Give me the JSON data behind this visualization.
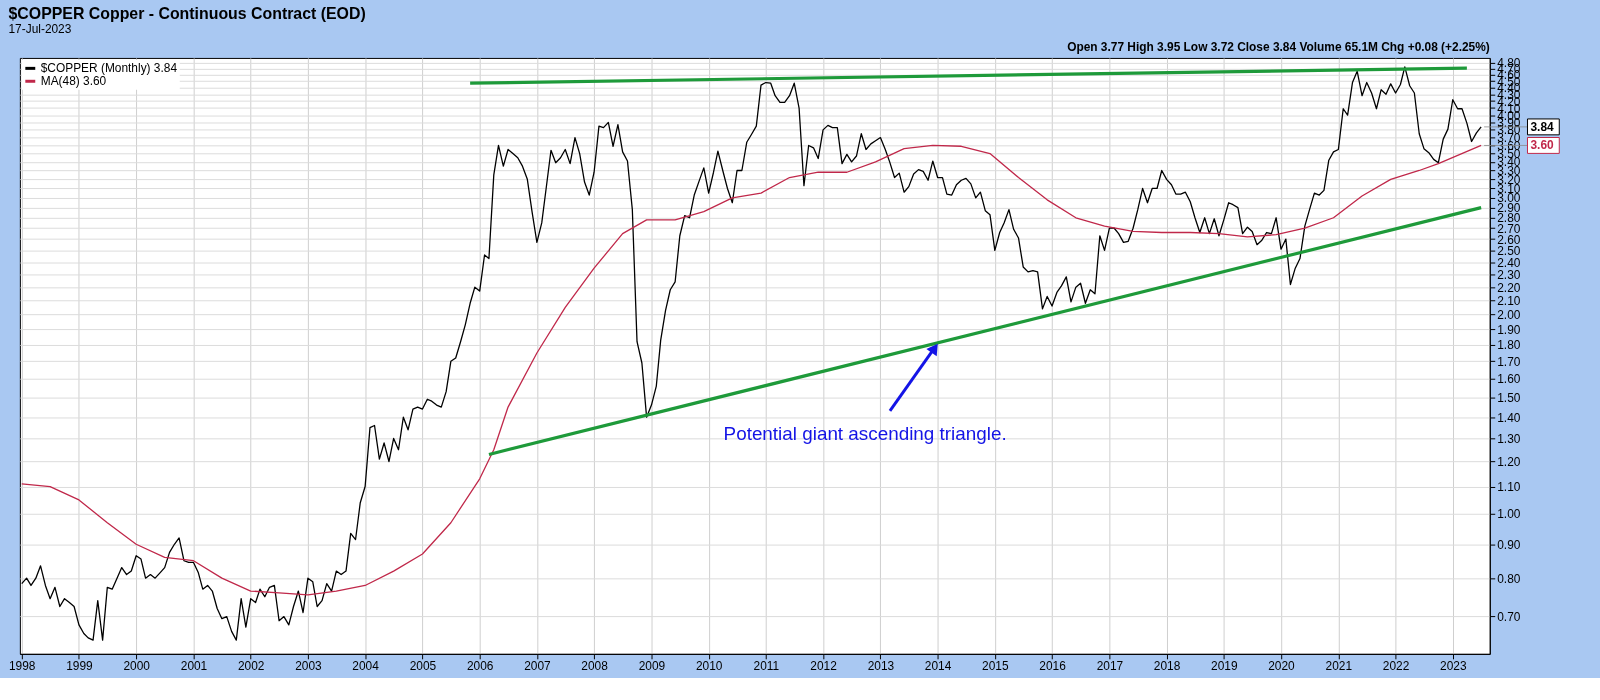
{
  "chart_data": {
    "type": "line",
    "title": "$COPPER Copper - Continuous Contract (EOD)",
    "subtitle": "17-Jul-2023",
    "annotations": [
      "Open 3.77  High 3.95  Low 3.72  Close 3.84  Volume 65.1M  Chg +0.08 (+2.25%)",
      {
        "text": "Potential giant ascending triangle.",
        "x": "2014-01",
        "y": 1.81
      }
    ],
    "log": "y",
    "grid": true,
    "legend": "top left",
    "xlim": [
      "1997-12-20",
      "2023-08-25"
    ],
    "ylim": [
      0.615,
      4.88
    ],
    "xticks": [
      "1998",
      "1999",
      "2000",
      "2001",
      "2002",
      "2003",
      "2004",
      "2005",
      "2006",
      "2007",
      "2008",
      "2009",
      "2010",
      "2011",
      "2012",
      "2013",
      "2014",
      "2015",
      "2016",
      "2017",
      "2018",
      "2019",
      "2020",
      "2021",
      "2022",
      "2023"
    ],
    "yticks": [
      {
        "value": 0.7,
        "label": "0.70"
      },
      {
        "value": 0.8,
        "label": "0.80"
      },
      {
        "value": 0.9,
        "label": "0.90"
      },
      {
        "value": 1.0,
        "label": "1.00"
      },
      {
        "value": 1.1,
        "label": "1.10"
      },
      {
        "value": 1.2,
        "label": "1.20"
      },
      {
        "value": 1.3,
        "label": "1.30"
      },
      {
        "value": 1.4,
        "label": "1.40"
      },
      {
        "value": 1.5,
        "label": "1.50"
      },
      {
        "value": 1.6,
        "label": "1.60"
      },
      {
        "value": 1.7,
        "label": "1.70"
      },
      {
        "value": 1.8,
        "label": "1.80"
      },
      {
        "value": 1.9,
        "label": "1.90"
      },
      {
        "value": 2.0,
        "label": "2.00"
      },
      {
        "value": 2.1,
        "label": "2.10"
      },
      {
        "value": 2.2,
        "label": "2.20"
      },
      {
        "value": 2.3,
        "label": "2.30"
      },
      {
        "value": 2.4,
        "label": "2.40"
      },
      {
        "value": 2.5,
        "label": "2.50"
      },
      {
        "value": 2.6,
        "label": "2.60"
      },
      {
        "value": 2.7,
        "label": "2.70"
      },
      {
        "value": 2.8,
        "label": "2.80"
      },
      {
        "value": 2.9,
        "label": "2.90"
      },
      {
        "value": 3.0,
        "label": "3.00"
      },
      {
        "value": 3.1,
        "label": "3.10"
      },
      {
        "value": 3.2,
        "label": "3.20"
      },
      {
        "value": 3.3,
        "label": "3.30"
      },
      {
        "value": 3.4,
        "label": "3.40"
      },
      {
        "value": 3.5,
        "label": "3.50"
      },
      {
        "value": 3.6,
        "label": "3.60"
      },
      {
        "value": 3.7,
        "label": "3.70"
      },
      {
        "value": 3.8,
        "label": "3.80"
      },
      {
        "value": 3.9,
        "label": "3.90"
      },
      {
        "value": 4.0,
        "label": "4.00"
      },
      {
        "value": 4.1,
        "label": "4.10"
      },
      {
        "value": 4.2,
        "label": "4.20"
      },
      {
        "value": 4.3,
        "label": "4.30"
      },
      {
        "value": 4.4,
        "label": "4.40"
      },
      {
        "value": 4.5,
        "label": "4.50"
      },
      {
        "value": 4.6,
        "label": "4.60"
      },
      {
        "value": 4.7,
        "label": "4.70"
      },
      {
        "value": 4.8,
        "label": "4.80"
      }
    ],
    "series": [
      {
        "name": "$COPPER (Monthly) 3.84",
        "color": "#000000",
        "x": [
          "1998-01",
          "1998-02",
          "1998-03",
          "1998-04",
          "1998-05",
          "1998-06",
          "1998-07",
          "1998-08",
          "1998-09",
          "1998-10",
          "1998-11",
          "1998-12",
          "1999-01",
          "1999-02",
          "1999-03",
          "1999-04",
          "1999-05",
          "1999-06",
          "1999-07",
          "1999-08",
          "1999-09",
          "1999-10",
          "1999-11",
          "1999-12",
          "2000-01",
          "2000-02",
          "2000-03",
          "2000-04",
          "2000-05",
          "2000-06",
          "2000-07",
          "2000-08",
          "2000-09",
          "2000-10",
          "2000-11",
          "2000-12",
          "2001-01",
          "2001-02",
          "2001-03",
          "2001-04",
          "2001-05",
          "2001-06",
          "2001-07",
          "2001-08",
          "2001-09",
          "2001-10",
          "2001-11",
          "2001-12",
          "2002-01",
          "2002-02",
          "2002-03",
          "2002-04",
          "2002-05",
          "2002-06",
          "2002-07",
          "2002-08",
          "2002-09",
          "2002-10",
          "2002-11",
          "2002-12",
          "2003-01",
          "2003-02",
          "2003-03",
          "2003-04",
          "2003-05",
          "2003-06",
          "2003-07",
          "2003-08",
          "2003-09",
          "2003-10",
          "2003-11",
          "2003-12",
          "2004-01",
          "2004-02",
          "2004-03",
          "2004-04",
          "2004-05",
          "2004-06",
          "2004-07",
          "2004-08",
          "2004-09",
          "2004-10",
          "2004-11",
          "2004-12",
          "2005-01",
          "2005-02",
          "2005-03",
          "2005-04",
          "2005-05",
          "2005-06",
          "2005-07",
          "2005-08",
          "2005-09",
          "2005-10",
          "2005-11",
          "2005-12",
          "2006-01",
          "2006-02",
          "2006-03",
          "2006-04",
          "2006-05",
          "2006-06",
          "2006-07",
          "2006-08",
          "2006-09",
          "2006-10",
          "2006-11",
          "2006-12",
          "2007-01",
          "2007-02",
          "2007-03",
          "2007-04",
          "2007-05",
          "2007-06",
          "2007-07",
          "2007-08",
          "2007-09",
          "2007-10",
          "2007-11",
          "2007-12",
          "2008-01",
          "2008-02",
          "2008-03",
          "2008-04",
          "2008-05",
          "2008-06",
          "2008-07",
          "2008-08",
          "2008-09",
          "2008-10",
          "2008-11",
          "2008-12",
          "2009-01",
          "2009-02",
          "2009-03",
          "2009-04",
          "2009-05",
          "2009-06",
          "2009-07",
          "2009-08",
          "2009-09",
          "2009-10",
          "2009-11",
          "2009-12",
          "2010-01",
          "2010-02",
          "2010-03",
          "2010-04",
          "2010-05",
          "2010-06",
          "2010-07",
          "2010-08",
          "2010-09",
          "2010-10",
          "2010-11",
          "2010-12",
          "2011-01",
          "2011-02",
          "2011-03",
          "2011-04",
          "2011-05",
          "2011-06",
          "2011-07",
          "2011-08",
          "2011-09",
          "2011-10",
          "2011-11",
          "2011-12",
          "2012-01",
          "2012-02",
          "2012-03",
          "2012-04",
          "2012-05",
          "2012-06",
          "2012-07",
          "2012-08",
          "2012-09",
          "2012-10",
          "2012-11",
          "2012-12",
          "2013-01",
          "2013-02",
          "2013-03",
          "2013-04",
          "2013-05",
          "2013-06",
          "2013-07",
          "2013-08",
          "2013-09",
          "2013-10",
          "2013-11",
          "2013-12",
          "2014-01",
          "2014-02",
          "2014-03",
          "2014-04",
          "2014-05",
          "2014-06",
          "2014-07",
          "2014-08",
          "2014-09",
          "2014-10",
          "2014-11",
          "2014-12",
          "2015-01",
          "2015-02",
          "2015-03",
          "2015-04",
          "2015-05",
          "2015-06",
          "2015-07",
          "2015-08",
          "2015-09",
          "2015-10",
          "2015-11",
          "2015-12",
          "2016-01",
          "2016-02",
          "2016-03",
          "2016-04",
          "2016-05",
          "2016-06",
          "2016-07",
          "2016-08",
          "2016-09",
          "2016-10",
          "2016-11",
          "2016-12",
          "2017-01",
          "2017-02",
          "2017-03",
          "2017-04",
          "2017-05",
          "2017-06",
          "2017-07",
          "2017-08",
          "2017-09",
          "2017-10",
          "2017-11",
          "2017-12",
          "2018-01",
          "2018-02",
          "2018-03",
          "2018-04",
          "2018-05",
          "2018-06",
          "2018-07",
          "2018-08",
          "2018-09",
          "2018-10",
          "2018-11",
          "2018-12",
          "2019-01",
          "2019-02",
          "2019-03",
          "2019-04",
          "2019-05",
          "2019-06",
          "2019-07",
          "2019-08",
          "2019-09",
          "2019-10",
          "2019-11",
          "2019-12",
          "2020-01",
          "2020-02",
          "2020-03",
          "2020-04",
          "2020-05",
          "2020-06",
          "2020-07",
          "2020-08",
          "2020-09",
          "2020-10",
          "2020-11",
          "2020-12",
          "2021-01",
          "2021-02",
          "2021-03",
          "2021-04",
          "2021-05",
          "2021-06",
          "2021-07",
          "2021-08",
          "2021-09",
          "2021-10",
          "2021-11",
          "2021-12",
          "2022-01",
          "2022-02",
          "2022-03",
          "2022-04",
          "2022-05",
          "2022-06",
          "2022-07",
          "2022-08",
          "2022-09",
          "2022-10",
          "2022-11",
          "2022-12",
          "2023-01",
          "2023-02",
          "2023-03",
          "2023-04",
          "2023-05",
          "2023-06",
          "2023-07"
        ],
        "values": [
          0.785,
          0.8,
          0.78,
          0.8,
          0.835,
          0.78,
          0.745,
          0.775,
          0.725,
          0.745,
          0.735,
          0.725,
          0.68,
          0.66,
          0.65,
          0.645,
          0.74,
          0.645,
          0.775,
          0.77,
          0.8,
          0.83,
          0.81,
          0.82,
          0.865,
          0.855,
          0.8,
          0.81,
          0.8,
          0.815,
          0.83,
          0.875,
          0.9,
          0.92,
          0.85,
          0.845,
          0.845,
          0.815,
          0.77,
          0.78,
          0.765,
          0.72,
          0.695,
          0.7,
          0.665,
          0.645,
          0.745,
          0.675,
          0.745,
          0.735,
          0.77,
          0.75,
          0.775,
          0.78,
          0.69,
          0.7,
          0.68,
          0.725,
          0.765,
          0.71,
          0.8,
          0.79,
          0.725,
          0.74,
          0.785,
          0.765,
          0.82,
          0.81,
          0.82,
          0.935,
          0.915,
          1.04,
          1.1,
          1.35,
          1.36,
          1.21,
          1.28,
          1.2,
          1.3,
          1.25,
          1.4,
          1.34,
          1.44,
          1.45,
          1.44,
          1.49,
          1.48,
          1.46,
          1.45,
          1.53,
          1.7,
          1.72,
          1.82,
          1.93,
          2.08,
          2.2,
          2.17,
          2.46,
          2.43,
          3.25,
          3.6,
          3.35,
          3.55,
          3.5,
          3.45,
          3.35,
          3.2,
          2.86,
          2.57,
          2.75,
          3.1,
          3.54,
          3.39,
          3.45,
          3.55,
          3.38,
          3.7,
          3.5,
          3.17,
          3.03,
          3.28,
          3.85,
          3.83,
          3.9,
          3.59,
          3.87,
          3.52,
          3.41,
          2.88,
          1.82,
          1.69,
          1.4,
          1.46,
          1.56,
          1.83,
          2.03,
          2.18,
          2.24,
          2.63,
          2.82,
          2.8,
          3.03,
          3.18,
          3.33,
          3.05,
          3.28,
          3.53,
          3.3,
          3.1,
          2.95,
          3.3,
          3.3,
          3.64,
          3.74,
          3.85,
          4.44,
          4.48,
          4.47,
          4.28,
          4.18,
          4.18,
          4.28,
          4.47,
          4.1,
          3.13,
          3.6,
          3.57,
          3.44,
          3.8,
          3.86,
          3.83,
          3.83,
          3.38,
          3.49,
          3.4,
          3.47,
          3.75,
          3.55,
          3.62,
          3.66,
          3.7,
          3.55,
          3.4,
          3.22,
          3.27,
          3.06,
          3.12,
          3.26,
          3.31,
          3.29,
          3.19,
          3.41,
          3.22,
          3.22,
          3.04,
          3.03,
          3.14,
          3.19,
          3.21,
          3.15,
          3.0,
          3.06,
          2.87,
          2.83,
          2.5,
          2.66,
          2.75,
          2.88,
          2.69,
          2.61,
          2.36,
          2.32,
          2.33,
          2.32,
          2.04,
          2.13,
          2.06,
          2.16,
          2.21,
          2.28,
          2.09,
          2.2,
          2.23,
          2.08,
          2.18,
          2.15,
          2.63,
          2.5,
          2.7,
          2.7,
          2.65,
          2.57,
          2.58,
          2.7,
          2.88,
          3.1,
          2.95,
          3.1,
          3.1,
          3.3,
          3.2,
          3.14,
          3.04,
          3.04,
          3.06,
          2.96,
          2.8,
          2.66,
          2.8,
          2.65,
          2.79,
          2.63,
          2.78,
          2.95,
          2.93,
          2.9,
          2.65,
          2.71,
          2.67,
          2.55,
          2.59,
          2.66,
          2.65,
          2.8,
          2.51,
          2.6,
          2.22,
          2.35,
          2.43,
          2.72,
          2.88,
          3.05,
          3.03,
          3.08,
          3.42,
          3.52,
          3.55,
          4.09,
          4.0,
          4.48,
          4.66,
          4.28,
          4.48,
          4.32,
          4.09,
          4.37,
          4.3,
          4.46,
          4.32,
          4.45,
          4.73,
          4.43,
          4.32,
          3.75,
          3.56,
          3.51,
          3.43,
          3.39,
          3.68,
          3.81,
          4.22,
          4.09,
          4.09,
          3.89,
          3.65,
          3.76,
          3.84
        ],
        "value_labels": [
          null,
          null,
          null,
          null,
          null,
          null,
          null,
          null,
          null,
          null,
          null,
          null,
          null,
          null,
          null,
          null,
          null,
          null,
          null,
          null,
          null,
          null,
          null,
          null,
          null,
          null,
          null,
          null,
          null,
          null,
          null,
          null,
          null,
          null,
          null,
          null,
          null,
          null,
          null,
          null,
          null,
          null,
          null,
          null,
          null,
          null,
          null,
          null,
          null,
          null,
          null,
          null,
          null,
          null,
          null,
          null,
          null,
          null,
          null,
          null,
          null,
          null,
          null,
          null,
          null,
          null,
          null,
          null,
          null,
          null,
          null,
          null,
          null,
          null,
          null,
          null,
          null,
          null,
          null,
          null,
          null,
          null,
          null,
          null,
          null,
          null,
          null,
          null,
          null,
          null,
          null,
          null,
          null,
          null,
          null,
          null,
          null,
          null,
          null,
          null,
          null,
          null,
          null,
          null,
          null,
          null,
          null,
          null,
          null,
          null,
          null,
          null,
          null,
          null,
          null,
          null,
          null,
          null,
          null,
          null,
          null,
          null,
          null,
          null,
          null,
          null,
          null,
          null,
          null,
          null,
          null,
          null,
          null,
          null,
          null,
          null,
          null,
          null,
          null,
          null,
          null,
          null,
          null,
          null,
          null,
          null,
          null,
          null,
          null,
          null,
          null,
          null,
          null,
          null,
          null,
          null,
          null,
          null,
          null,
          null,
          null,
          null,
          null,
          null,
          null,
          null,
          null,
          null,
          null,
          null,
          null,
          null,
          null,
          null,
          null,
          null,
          null,
          null,
          null,
          null,
          null,
          null,
          null,
          null,
          null,
          null,
          null,
          null,
          null,
          null,
          null,
          null,
          null,
          null,
          null,
          null,
          null,
          null,
          null,
          null,
          null,
          null,
          null,
          null,
          null,
          null,
          null,
          null,
          null,
          null,
          null,
          null,
          null,
          null,
          null,
          null,
          null,
          null,
          null,
          null,
          null,
          null,
          null,
          null,
          null,
          null,
          null,
          null,
          null,
          null,
          null,
          null,
          null,
          null,
          null,
          null,
          null,
          null,
          null,
          null,
          null,
          null,
          null,
          null,
          null,
          null,
          null,
          null,
          null,
          null,
          null,
          null,
          null,
          null,
          null,
          null,
          null,
          null,
          null,
          null,
          null,
          null,
          null,
          null,
          null,
          null,
          null,
          null,
          null,
          null,
          null,
          null,
          null,
          null,
          null,
          null,
          null,
          null,
          null,
          null,
          null,
          null,
          null,
          null,
          null,
          null,
          null,
          null,
          null,
          null,
          null,
          null,
          null,
          null,
          null,
          null,
          null,
          null,
          null,
          null,
          null,
          null,
          null,
          null,
          null,
          null,
          "3.84"
        ]
      },
      {
        "name": "MA(48) 3.60",
        "color": "#c0284a",
        "x": [
          "1998-01",
          "1998-07",
          "1999-01",
          "1999-07",
          "2000-01",
          "2000-07",
          "2001-01",
          "2001-07",
          "2002-01",
          "2002-07",
          "2003-01",
          "2003-07",
          "2004-01",
          "2004-07",
          "2005-01",
          "2005-07",
          "2006-01",
          "2006-04",
          "2006-07",
          "2007-01",
          "2007-07",
          "2008-01",
          "2008-07",
          "2008-12",
          "2009-06",
          "2009-12",
          "2010-06",
          "2010-12",
          "2011-06",
          "2011-12",
          "2012-06",
          "2012-12",
          "2013-06",
          "2013-12",
          "2014-06",
          "2014-12",
          "2015-06",
          "2015-12",
          "2016-06",
          "2016-12",
          "2017-06",
          "2017-12",
          "2018-06",
          "2018-12",
          "2019-06",
          "2019-12",
          "2020-06",
          "2020-12",
          "2021-06",
          "2021-12",
          "2022-06",
          "2022-10",
          "2023-07"
        ],
        "values": [
          1.11,
          1.1,
          1.05,
          0.97,
          0.9,
          0.86,
          0.85,
          0.8,
          0.765,
          0.76,
          0.755,
          0.765,
          0.78,
          0.82,
          0.87,
          0.97,
          1.13,
          1.25,
          1.45,
          1.75,
          2.05,
          2.35,
          2.65,
          2.78,
          2.78,
          2.86,
          3.0,
          3.05,
          3.22,
          3.28,
          3.28,
          3.4,
          3.56,
          3.6,
          3.59,
          3.5,
          3.22,
          2.98,
          2.8,
          2.72,
          2.67,
          2.66,
          2.66,
          2.65,
          2.62,
          2.64,
          2.7,
          2.8,
          3.02,
          3.2,
          3.3,
          3.38,
          3.6
        ],
        "value_labels": [
          null,
          null,
          null,
          null,
          null,
          null,
          null,
          null,
          null,
          null,
          null,
          null,
          null,
          null,
          null,
          null,
          null,
          null,
          null,
          null,
          null,
          null,
          null,
          null,
          null,
          null,
          null,
          null,
          null,
          null,
          null,
          null,
          null,
          null,
          null,
          null,
          null,
          null,
          null,
          null,
          null,
          null,
          null,
          null,
          null,
          null,
          null,
          null,
          null,
          null,
          null,
          null,
          "3.60"
        ]
      },
      {
        "color": "#1e9a3a",
        "x": [
          "2005-11",
          "2023-04"
        ],
        "values": [
          4.47,
          4.71
        ]
      },
      {
        "color": "#1e9a3a",
        "x": [
          "2006-03",
          "2023-07"
        ],
        "values": [
          1.23,
          2.9
        ]
      }
    ]
  }
}
